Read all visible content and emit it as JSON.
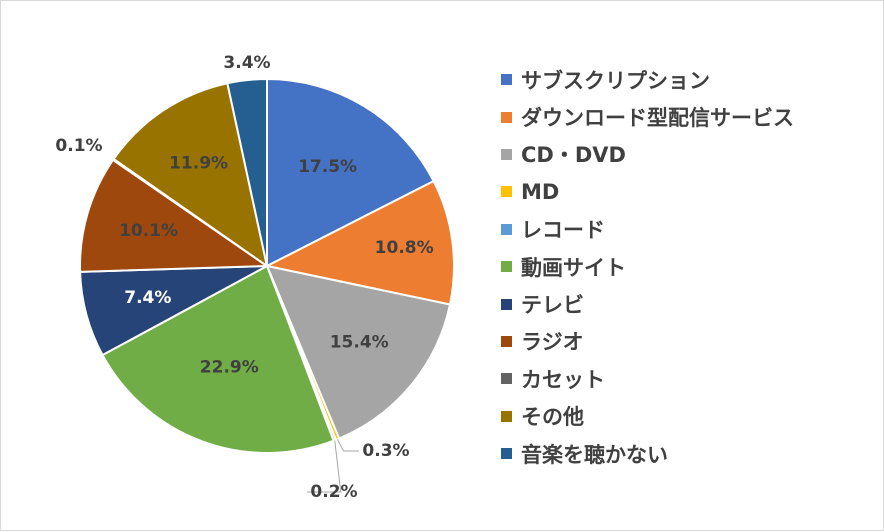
{
  "chart_data": {
    "type": "pie",
    "title": "",
    "start_angle_deg": 0,
    "direction": "clockwise",
    "legend_position": "right",
    "categories": [
      "サブスクリプション",
      "ダウンロード型配信サービス",
      "CD・DVD",
      "MD",
      "レコード",
      "動画サイト",
      "テレビ",
      "ラジオ",
      "カセット",
      "その他",
      "音楽を聴かない"
    ],
    "values": [
      17.5,
      10.8,
      15.4,
      0.3,
      0.2,
      22.9,
      7.4,
      10.1,
      0.1,
      11.9,
      3.4
    ],
    "labels": [
      "17.5%",
      "10.8%",
      "15.4%",
      "0.3%",
      "0.2%",
      "22.9%",
      "7.4%",
      "10.1%",
      "0.1%",
      "11.9%",
      "3.4%"
    ],
    "colors": [
      "#4472c4",
      "#ed7d31",
      "#a5a5a5",
      "#ffc000",
      "#5b9bd5",
      "#70ad47",
      "#264478",
      "#9e480e",
      "#636363",
      "#997300",
      "#255e91"
    ],
    "label_colors": [
      "#404040",
      "#404040",
      "#404040",
      "#404040",
      "#404040",
      "#404040",
      "#ffffff",
      "#404040",
      "#404040",
      "#404040",
      "#404040"
    ]
  }
}
